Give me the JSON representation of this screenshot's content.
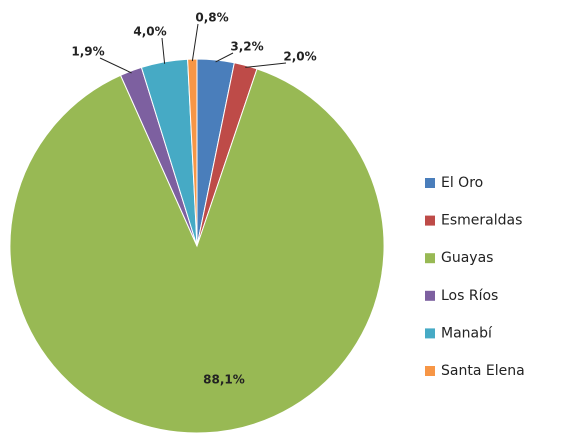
{
  "chart_data": {
    "type": "pie",
    "categories": [
      "El Oro",
      "Esmeraldas",
      "Guayas",
      "Los Ríos",
      "Manabí",
      "Santa Elena"
    ],
    "values": [
      3.2,
      2.0,
      88.1,
      1.9,
      4.0,
      0.8
    ],
    "value_labels": [
      "3,2%",
      "2,0%",
      "88,1%",
      "1,9%",
      "4,0%",
      "0,8%"
    ],
    "colors": [
      "#4a7ebb",
      "#be4b48",
      "#98b954",
      "#7d60a0",
      "#46aac5",
      "#f79646"
    ],
    "legend": "right"
  }
}
